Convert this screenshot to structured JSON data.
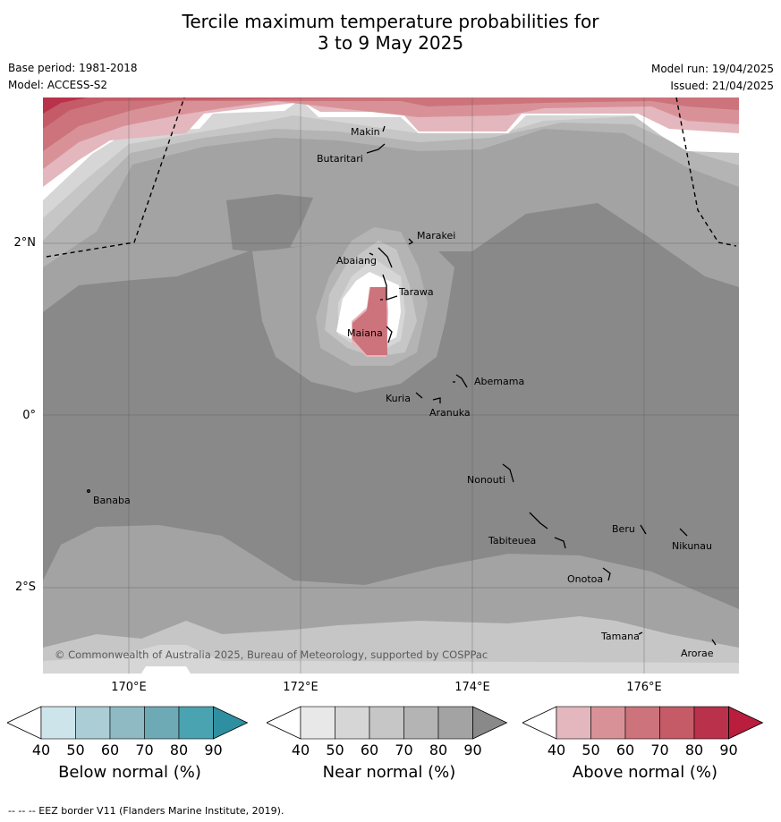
{
  "title_line1": "Tercile maximum temperature probabilities for",
  "title_line2": "3 to 9 May 2025",
  "meta": {
    "base_period": "Base period: 1981-2018",
    "model": "Model: ACCESS-S2",
    "model_run": "Model run: 19/04/2025",
    "issued": "Issued: 21/04/2025"
  },
  "axes": {
    "lat_labels": [
      "2°N",
      "0°",
      "2°S"
    ],
    "lon_labels": [
      "170°E",
      "172°E",
      "174°E",
      "176°E"
    ]
  },
  "islands": [
    "Makin",
    "Butaritari",
    "Marakei",
    "Abaiang",
    "Tarawa",
    "Maiana",
    "Abemama",
    "Kuria",
    "Aranuka",
    "Nonouti",
    "Banaba",
    "Tabiteuea",
    "Beru",
    "Nikunau",
    "Onotoa",
    "Tamana",
    "Arorae"
  ],
  "copyright": "© Commonwealth of Australia 2025, Bureau of Meteorology, supported by COSPPac",
  "colorbars": [
    {
      "label": "Below normal (%)",
      "ticks": [
        "40",
        "50",
        "60",
        "70",
        "80",
        "90"
      ],
      "colors": [
        "#ffffff",
        "#cde4ea",
        "#abcdd5",
        "#8fbac4",
        "#6eaab6",
        "#4aa3b1",
        "#2e8fa0"
      ]
    },
    {
      "label": "Near normal (%)",
      "ticks": [
        "40",
        "50",
        "60",
        "70",
        "80",
        "90"
      ],
      "colors": [
        "#ffffff",
        "#e8e8e8",
        "#d6d6d6",
        "#c6c6c6",
        "#b4b4b4",
        "#a3a3a3",
        "#898989"
      ]
    },
    {
      "label": "Above normal (%)",
      "ticks": [
        "40",
        "50",
        "60",
        "70",
        "80",
        "90"
      ],
      "colors": [
        "#ffffff",
        "#e3b7bd",
        "#d99198",
        "#cc737b",
        "#c45b67",
        "#b9314a",
        "#b91e3c"
      ]
    }
  ],
  "footer": "--  --  -- EEZ border V11 (Flanders Marine Institute, 2019)."
}
